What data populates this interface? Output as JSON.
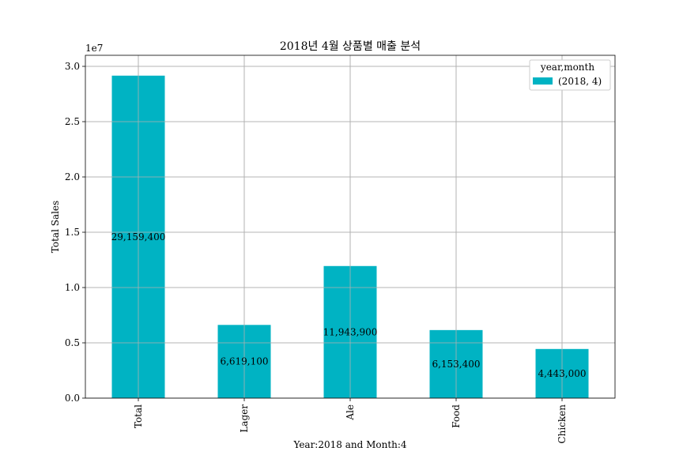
{
  "chart_data": {
    "type": "bar",
    "title": "2018년 4월 상품별 매출 분석",
    "xlabel": "Year:2018 and Month:4",
    "ylabel": "Total Sales",
    "categories": [
      "Total",
      "Lager",
      "Ale",
      "Food",
      "Chicken"
    ],
    "series": [
      {
        "name": "(2018, 4)",
        "values": [
          29159400,
          6619100,
          11943900,
          6153400,
          4443000
        ]
      }
    ],
    "data_labels": [
      "29,159,400",
      "6,619,100",
      "11,943,900",
      "6,153,400",
      "4,443,000"
    ],
    "ylim": [
      0,
      31000000
    ],
    "yticks": [
      0,
      5000000,
      10000000,
      15000000,
      20000000,
      25000000,
      30000000
    ],
    "ytick_labels": [
      "0.0",
      "0.5",
      "1.0",
      "1.5",
      "2.0",
      "2.5",
      "3.0"
    ],
    "y_offset_text": "1e7",
    "legend_title": "year,month",
    "legend_position": "top-right",
    "grid": true,
    "colors": {
      "bar": "#00b3c3",
      "grid": "#b0b0b0",
      "axis": "#000000"
    }
  }
}
